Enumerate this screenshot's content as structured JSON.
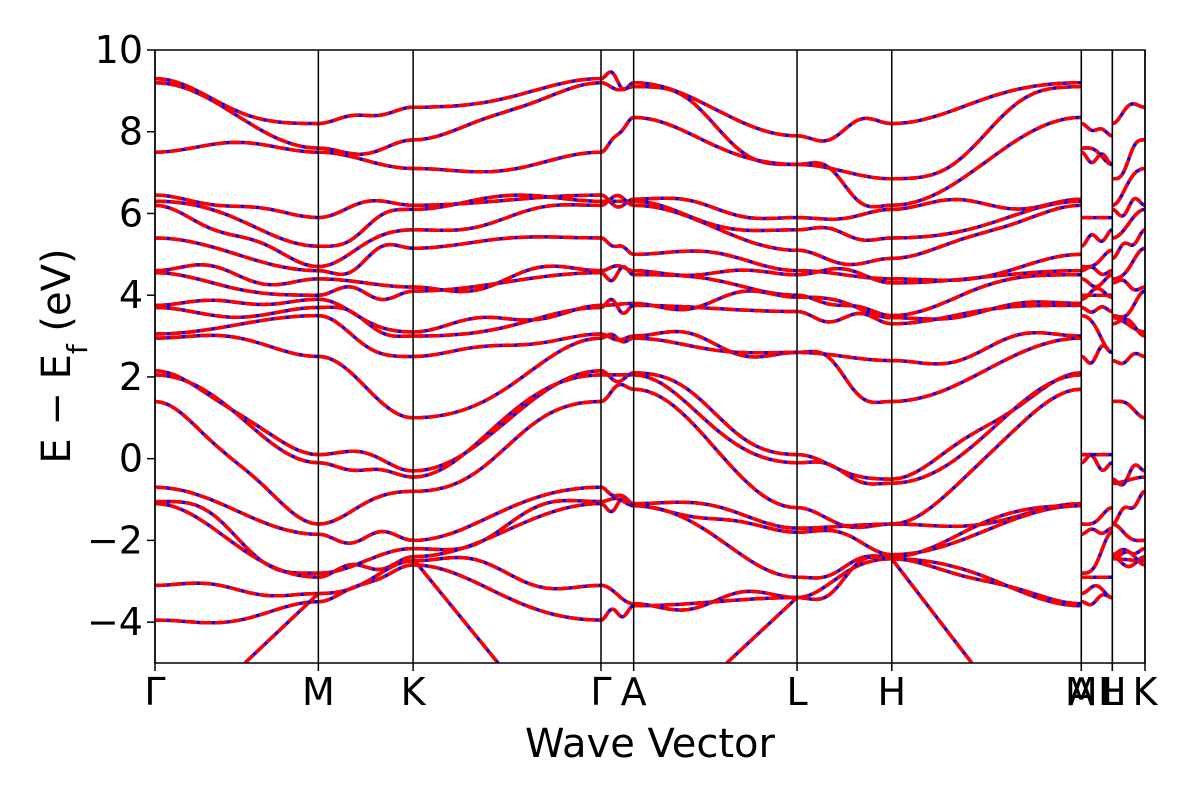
{
  "chart_data": {
    "type": "line",
    "xlabel": "Wave Vector",
    "ylabel": {
      "prefix": "E − E",
      "subscript": "f",
      "suffix": " (eV)"
    },
    "ylim": [
      -5,
      10
    ],
    "yticks": [
      -4,
      -2,
      0,
      2,
      4,
      6,
      8,
      10
    ],
    "ytick_labels": [
      "−4",
      "−2",
      "0",
      "2",
      "4",
      "6",
      "8",
      "10"
    ],
    "xlim": [
      0,
      6.06
    ],
    "high_symmetry_points": [
      {
        "label": "Γ",
        "x": 0.0
      },
      {
        "label": "M",
        "x": 1.0
      },
      {
        "label": "K",
        "x": 1.58
      },
      {
        "label": "Γ",
        "x": 2.73
      },
      {
        "label": "A",
        "x": 2.93
      },
      {
        "label": "L",
        "x": 3.93
      },
      {
        "label": "H",
        "x": 4.51
      },
      {
        "label": "A",
        "x": 5.67
      },
      {
        "label": "M",
        "x": 5.67
      },
      {
        "label": "L",
        "x": 5.86
      },
      {
        "label": "H",
        "x": 5.86
      },
      {
        "label": "K",
        "x": 6.06
      }
    ],
    "series_styles": [
      {
        "color": "#0000ff",
        "linestyle": "solid"
      },
      {
        "color": "#ff0000",
        "linestyle": "dashed"
      }
    ],
    "segments": [
      {
        "x0": 0.0,
        "x1": 1.0,
        "start": [
          9.3,
          9.2,
          7.5,
          6.45,
          6.3,
          6.2,
          5.4,
          4.6,
          4.55,
          3.75,
          3.7,
          3.05,
          2.95,
          2.15,
          2.05,
          1.4,
          -0.7,
          -1.05,
          -1.1,
          -3.1,
          -3.95
        ],
        "end": [
          8.2,
          7.6,
          7.5,
          5.9,
          5.2,
          4.7,
          4.6,
          4.4,
          4.0,
          3.9,
          3.7,
          3.5,
          2.5,
          0.1,
          -0.1,
          -1.6,
          -1.85,
          -2.8,
          -2.9,
          -3.3,
          -3.5
        ]
      },
      {
        "x0": 1.0,
        "x1": 1.58,
        "start": [
          8.2,
          7.6,
          7.5,
          5.9,
          5.2,
          4.7,
          4.6,
          4.4,
          4.0,
          3.9,
          3.7,
          3.5,
          2.5,
          0.1,
          -0.1,
          -1.6,
          -1.85,
          -2.8,
          -2.9,
          -3.3,
          -3.5
        ],
        "end": [
          8.6,
          7.8,
          7.1,
          6.2,
          6.1,
          5.6,
          5.15,
          4.2,
          4.1,
          3.1,
          3.0,
          2.5,
          1.0,
          -0.3,
          -0.45,
          -0.8,
          -2.0,
          -2.2,
          -2.4,
          -2.5,
          -2.6
        ]
      },
      {
        "x0": 1.58,
        "x1": 2.73,
        "start": [
          8.6,
          7.8,
          7.1,
          6.2,
          6.1,
          5.6,
          5.15,
          4.2,
          4.1,
          3.1,
          3.0,
          2.5,
          1.0,
          -0.3,
          -0.45,
          -0.8,
          -2.0,
          -2.2,
          -2.4,
          -2.5,
          -2.6
        ],
        "end": [
          9.3,
          9.2,
          7.5,
          6.45,
          6.3,
          6.2,
          5.4,
          4.6,
          4.55,
          3.75,
          3.7,
          3.05,
          2.95,
          2.15,
          2.05,
          1.4,
          -0.7,
          -1.05,
          -1.1,
          -3.1,
          -3.95
        ]
      },
      {
        "x0": 2.73,
        "x1": 2.93,
        "start": [
          9.3,
          9.2,
          7.5,
          6.45,
          6.3,
          6.2,
          5.4,
          4.6,
          4.55,
          3.75,
          3.7,
          3.05,
          2.95,
          2.15,
          2.05,
          1.4,
          -0.7,
          -1.05,
          -1.1,
          -3.1,
          -3.95
        ],
        "end": [
          9.2,
          9.1,
          8.35,
          6.35,
          6.3,
          6.2,
          5.0,
          4.6,
          4.5,
          3.8,
          3.75,
          3.0,
          2.95,
          2.1,
          2.05,
          1.7,
          -1.1,
          -1.15,
          -1.15,
          -3.55,
          -3.6
        ]
      },
      {
        "x0": 2.93,
        "x1": 3.93,
        "start": [
          9.2,
          9.1,
          8.35,
          6.35,
          6.3,
          6.2,
          5.0,
          4.6,
          4.5,
          3.8,
          3.75,
          3.0,
          2.95,
          2.1,
          2.05,
          1.7,
          -1.1,
          -1.15,
          -1.15,
          -3.55,
          -3.6
        ],
        "end": [
          7.9,
          7.2,
          7.2,
          5.9,
          5.6,
          5.1,
          4.6,
          4.5,
          4.0,
          3.95,
          3.6,
          2.6,
          2.6,
          0.1,
          -0.1,
          -1.2,
          -1.7,
          -1.8,
          -2.9,
          -3.4,
          -3.4
        ]
      },
      {
        "x0": 3.93,
        "x1": 4.51,
        "start": [
          7.9,
          7.2,
          7.2,
          5.9,
          5.6,
          5.1,
          4.6,
          4.5,
          4.0,
          3.95,
          3.6,
          2.6,
          2.6,
          0.1,
          -0.1,
          -1.2,
          -1.7,
          -1.8,
          -2.9,
          -3.4,
          -3.4
        ],
        "end": [
          8.2,
          6.85,
          6.2,
          6.1,
          5.4,
          4.9,
          4.4,
          4.3,
          3.5,
          3.45,
          3.3,
          2.4,
          1.4,
          -0.5,
          -0.6,
          -1.6,
          -1.6,
          -2.35,
          -2.4,
          -2.45,
          -2.45
        ]
      },
      {
        "x0": 4.51,
        "x1": 5.67,
        "start": [
          8.2,
          6.85,
          6.2,
          6.1,
          5.4,
          4.9,
          4.4,
          4.3,
          3.5,
          3.45,
          3.3,
          2.4,
          1.4,
          -0.5,
          -0.6,
          -1.6,
          -1.6,
          -2.35,
          -2.4,
          -2.45,
          -2.45
        ],
        "end": [
          9.2,
          9.1,
          8.35,
          6.35,
          6.3,
          6.2,
          5.0,
          4.6,
          4.5,
          3.8,
          3.75,
          3.0,
          2.95,
          2.1,
          2.05,
          1.7,
          -1.1,
          -1.15,
          -1.15,
          -3.55,
          -3.6
        ]
      },
      {
        "x0": 5.67,
        "x1": 5.86,
        "start": [
          8.2,
          7.6,
          7.5,
          5.9,
          5.2,
          4.7,
          4.6,
          4.4,
          4.0,
          3.9,
          3.7,
          3.5,
          2.5,
          0.1,
          -0.1,
          -1.6,
          -1.85,
          -2.8,
          -2.9,
          -3.3,
          -3.5
        ],
        "end": [
          7.9,
          7.2,
          7.2,
          5.9,
          5.6,
          5.1,
          4.6,
          4.5,
          4.0,
          3.95,
          3.6,
          2.6,
          2.6,
          0.1,
          -0.1,
          -1.2,
          -1.7,
          -1.8,
          -2.9,
          -3.4,
          -3.4
        ]
      },
      {
        "x0": 5.86,
        "x1": 6.06,
        "start": [
          8.2,
          6.85,
          6.2,
          6.1,
          5.4,
          4.9,
          4.4,
          4.3,
          3.5,
          3.45,
          3.3,
          2.4,
          1.4,
          -0.5,
          -0.6,
          -1.6,
          -1.6,
          -2.35,
          -2.4,
          -2.45,
          -2.45
        ],
        "end": [
          8.6,
          7.8,
          7.1,
          6.2,
          6.1,
          5.6,
          5.15,
          4.2,
          4.1,
          3.1,
          3.0,
          2.5,
          1.0,
          -0.3,
          -0.45,
          -0.8,
          -2.0,
          -2.2,
          -2.4,
          -2.5,
          -2.6
        ]
      }
    ],
    "lower_bands": [
      {
        "x0": 0.55,
        "y0": -5.0,
        "x1": 1.0,
        "y1": -3.3
      },
      {
        "x0": 1.58,
        "y0": -2.45,
        "x1": 2.1,
        "y1": -5.0
      },
      {
        "x0": 3.5,
        "y0": -5.0,
        "x1": 3.93,
        "y1": -3.4
      },
      {
        "x0": 4.51,
        "y0": -2.45,
        "x1": 5.0,
        "y1": -5.0
      }
    ]
  }
}
